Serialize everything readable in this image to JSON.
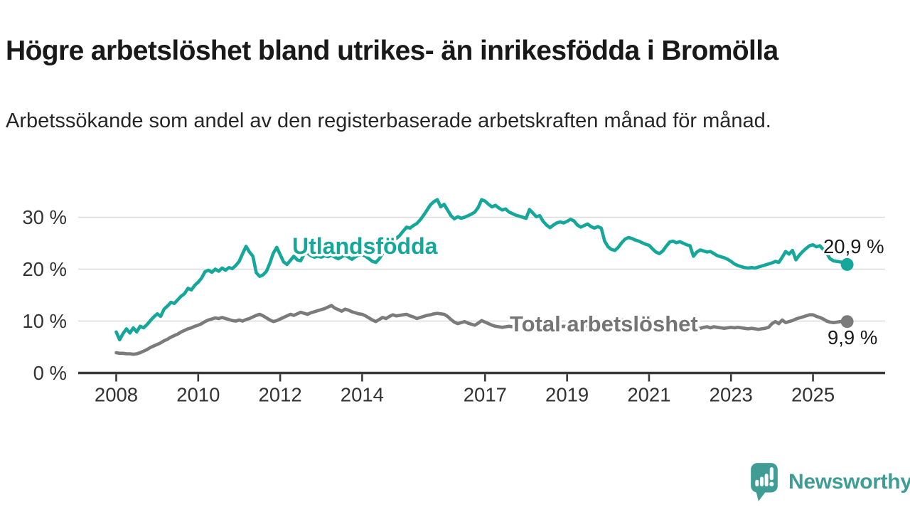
{
  "title": "Högre arbetslöshet bland utrikes- än inrikesfödda i Bromölla",
  "subtitle": "Arbetssökande som andel av den registerbaserade arbetskraften månad för månad.",
  "logo": {
    "text": "Newsworthy",
    "color": "#3f9d96",
    "icon": "speech-bubble-bar-chart-icon"
  },
  "colors": {
    "foreign_born_line": "#14a79a",
    "total_line": "#7b7b7b",
    "total_label": "#757575",
    "axis": "#3a3a3a",
    "grid": "#d9d9d9",
    "tick_text": "#333333",
    "annotation_text": "#1a1a1a"
  },
  "chart_data": {
    "type": "line",
    "x_unit": "monthly",
    "x_start": "2008-01",
    "x_end": "2025-11",
    "ylim": [
      0,
      35
    ],
    "grid": true,
    "legend_position": "inline-labels",
    "yticks": [
      {
        "v": 0,
        "label": "0 %"
      },
      {
        "v": 10,
        "label": "10 %"
      },
      {
        "v": 20,
        "label": "20 %"
      },
      {
        "v": 30,
        "label": "30 %"
      }
    ],
    "xticks": [
      {
        "year": 2008,
        "label": "2008"
      },
      {
        "year": 2010,
        "label": "2010"
      },
      {
        "year": 2012,
        "label": "2012"
      },
      {
        "year": 2014,
        "label": "2014"
      },
      {
        "year": 2017,
        "label": "2017"
      },
      {
        "year": 2019,
        "label": "2019"
      },
      {
        "year": 2021,
        "label": "2021"
      },
      {
        "year": 2023,
        "label": "2023"
      },
      {
        "year": 2025,
        "label": "2025"
      }
    ],
    "series": [
      {
        "name": "Utlandsfödda",
        "end_label": "20,9 %",
        "color": "#14a79a",
        "values": [
          7.9,
          6.4,
          7.6,
          8.5,
          7.7,
          8.7,
          7.9,
          9.0,
          8.7,
          9.3,
          10.1,
          10.8,
          11.4,
          10.9,
          12.3,
          12.9,
          13.6,
          13.4,
          14.1,
          14.8,
          15.3,
          16.3,
          16.0,
          16.9,
          17.5,
          18.3,
          19.5,
          19.8,
          19.4,
          20.0,
          19.6,
          20.2,
          19.8,
          20.3,
          20.1,
          20.7,
          21.5,
          23.0,
          24.4,
          23.3,
          22.5,
          19.3,
          18.6,
          18.9,
          19.6,
          21.2,
          23.1,
          24.2,
          22.8,
          21.4,
          20.9,
          21.7,
          22.5,
          21.8,
          21.6,
          22.9,
          23.1,
          22.6,
          22.3,
          22.5,
          22.3,
          22.6,
          22.4,
          22.7,
          22.3,
          22.0,
          22.4,
          22.7,
          22.3,
          21.9,
          22.4,
          22.7,
          22.8,
          22.5,
          22.0,
          21.5,
          21.3,
          22.0,
          23.0,
          24.3,
          25.6,
          26.2,
          25.9,
          26.5,
          27.3,
          28.1,
          27.9,
          28.4,
          28.8,
          29.5,
          30.4,
          31.4,
          32.4,
          33.0,
          33.4,
          32.0,
          32.5,
          31.4,
          30.3,
          29.7,
          30.1,
          29.8,
          30.0,
          30.3,
          30.6,
          31.0,
          31.9,
          33.4,
          33.1,
          32.5,
          32.0,
          32.3,
          31.8,
          31.4,
          31.6,
          31.0,
          30.7,
          30.4,
          30.2,
          30.0,
          29.8,
          31.5,
          30.8,
          30.1,
          30.3,
          29.2,
          28.5,
          28.0,
          28.5,
          28.9,
          29.1,
          28.9,
          29.2,
          29.6,
          29.3,
          28.5,
          28.1,
          28.4,
          28.7,
          28.2,
          27.9,
          28.2,
          27.9,
          25.4,
          24.3,
          23.8,
          23.6,
          24.2,
          25.1,
          25.8,
          26.1,
          25.9,
          25.6,
          25.4,
          25.1,
          24.8,
          24.6,
          23.9,
          23.3,
          23.0,
          23.5,
          24.4,
          25.2,
          25.4,
          25.1,
          25.3,
          25.0,
          24.7,
          24.5,
          22.5,
          23.3,
          23.7,
          23.5,
          23.3,
          23.4,
          23.0,
          22.6,
          22.4,
          22.2,
          21.9,
          21.5,
          21.0,
          20.7,
          20.5,
          20.3,
          20.2,
          20.3,
          20.2,
          20.4,
          20.6,
          20.8,
          21.0,
          21.2,
          21.5,
          21.3,
          22.3,
          23.4,
          22.9,
          23.6,
          21.8,
          22.7,
          23.4,
          24.0,
          24.5,
          24.7,
          24.3,
          24.5,
          23.8,
          23.1,
          22.0,
          21.6,
          21.5,
          21.4,
          21.2,
          20.9
        ]
      },
      {
        "name": "Total arbetslöshet",
        "end_label": "9,9 %",
        "color": "#7b7b7b",
        "values": [
          3.9,
          3.8,
          3.8,
          3.7,
          3.7,
          3.6,
          3.7,
          3.9,
          4.2,
          4.5,
          4.9,
          5.2,
          5.5,
          5.8,
          6.2,
          6.5,
          6.9,
          7.2,
          7.5,
          7.9,
          8.2,
          8.5,
          8.7,
          9.0,
          9.2,
          9.5,
          9.9,
          10.2,
          10.4,
          10.6,
          10.5,
          10.7,
          10.5,
          10.3,
          10.1,
          10.0,
          10.2,
          10.0,
          10.3,
          10.5,
          10.8,
          11.1,
          11.3,
          11.0,
          10.6,
          10.2,
          9.9,
          10.1,
          10.4,
          10.7,
          11.0,
          11.3,
          11.1,
          11.4,
          11.7,
          11.5,
          11.3,
          11.6,
          11.8,
          12.0,
          12.2,
          12.4,
          12.7,
          13.0,
          12.5,
          12.2,
          11.9,
          12.3,
          12.1,
          11.8,
          11.6,
          11.4,
          11.3,
          11.0,
          10.6,
          10.2,
          9.9,
          10.3,
          10.7,
          10.5,
          10.9,
          11.2,
          11.0,
          11.1,
          11.2,
          11.3,
          11.0,
          10.8,
          10.5,
          10.7,
          10.9,
          11.1,
          11.2,
          11.4,
          11.5,
          11.4,
          11.3,
          10.9,
          10.3,
          9.8,
          9.5,
          9.7,
          9.9,
          9.6,
          9.4,
          9.2,
          9.6,
          10.1,
          9.8,
          9.5,
          9.2,
          9.0,
          8.9,
          8.8,
          8.9,
          9.0,
          8.9,
          8.8,
          8.9,
          9.0,
          8.9,
          8.8,
          8.7,
          8.8,
          8.9,
          8.8,
          8.7,
          8.8,
          8.9,
          8.8,
          8.9,
          9.0,
          8.9,
          8.8,
          8.9,
          9.0,
          9.1,
          9.0,
          9.1,
          9.2,
          9.1,
          9.2,
          9.3,
          9.5,
          9.8,
          10.0,
          10.2,
          10.4,
          10.3,
          10.2,
          10.1,
          10.0,
          9.9,
          9.8,
          9.7,
          9.6,
          9.5,
          9.4,
          9.3,
          9.2,
          9.1,
          9.0,
          8.9,
          8.8,
          8.9,
          8.8,
          8.7,
          8.8,
          8.7,
          8.6,
          8.5,
          8.6,
          8.8,
          8.9,
          8.7,
          8.9,
          8.8,
          8.7,
          8.6,
          8.7,
          8.8,
          8.7,
          8.8,
          8.7,
          8.6,
          8.5,
          8.6,
          8.5,
          8.4,
          8.5,
          8.6,
          8.8,
          9.5,
          9.9,
          9.5,
          10.2,
          9.7,
          9.9,
          10.1,
          10.4,
          10.6,
          10.8,
          11.0,
          11.2,
          11.2,
          10.9,
          10.7,
          10.4,
          10.0,
          9.8,
          9.7,
          9.8,
          9.9,
          9.8,
          9.9
        ]
      }
    ]
  }
}
